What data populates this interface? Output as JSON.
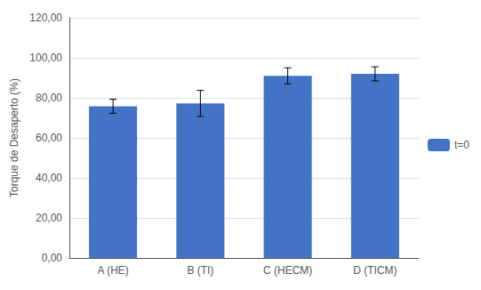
{
  "chart_data": {
    "type": "bar",
    "categories": [
      "A (HE)",
      "B (TI)",
      "C (HECM)",
      "D (TICM)"
    ],
    "series": [
      {
        "name": "t=0",
        "color": "#4472C4",
        "values": [
          75.8,
          77.2,
          91.0,
          92.0
        ],
        "errors": [
          3.5,
          6.5,
          4.0,
          3.5
        ]
      }
    ],
    "ylabel": "Torque de Desaperto (%)",
    "ylim": [
      0,
      120
    ],
    "yticks": [
      {
        "value": 0,
        "label": "0,00"
      },
      {
        "value": 20,
        "label": "20,00"
      },
      {
        "value": 40,
        "label": "40,00"
      },
      {
        "value": 60,
        "label": "60,00"
      },
      {
        "value": 80,
        "label": "80,00"
      },
      {
        "value": 100,
        "label": "100,00"
      },
      {
        "value": 120,
        "label": "120,00"
      }
    ],
    "grid": true,
    "legend": "right"
  }
}
